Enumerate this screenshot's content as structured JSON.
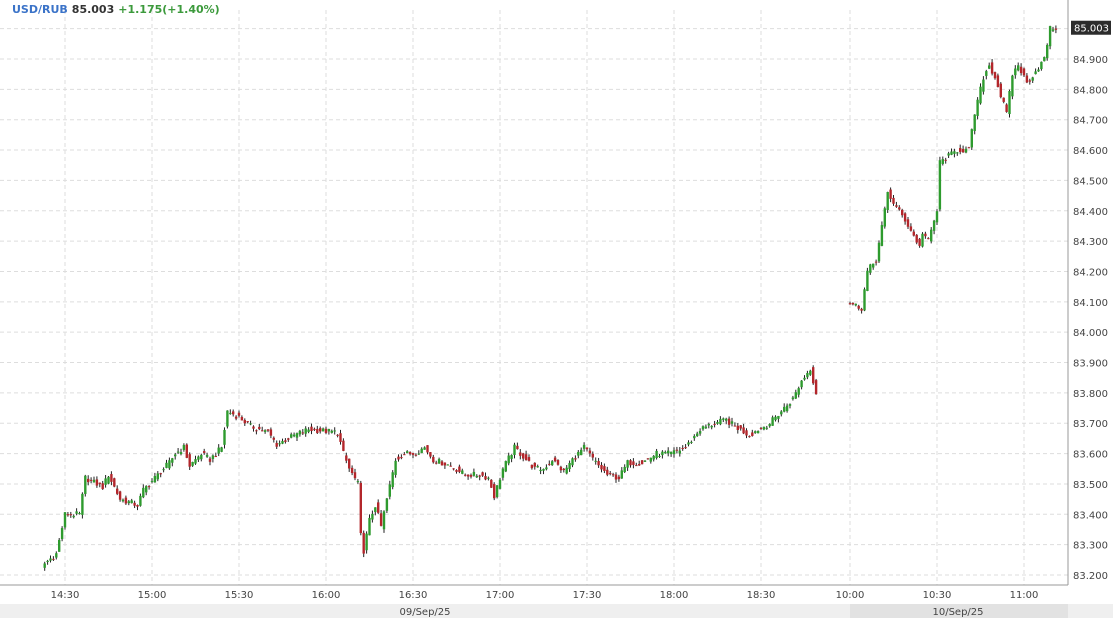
{
  "header": {
    "symbol": "USD/RUB",
    "price": "85.003",
    "change": "+1.175(+1.40%)"
  },
  "chart_data": {
    "type": "candlestick",
    "interval_minutes": 1,
    "y_ticks": [
      "83.200",
      "83.300",
      "83.400",
      "83.500",
      "83.600",
      "83.700",
      "83.800",
      "83.900",
      "84.000",
      "84.100",
      "84.200",
      "84.300",
      "84.400",
      "84.500",
      "84.600",
      "84.700",
      "84.800",
      "84.900"
    ],
    "ylim": [
      83.15,
      85.05
    ],
    "last_price_label": "85.003",
    "x_ticks": [
      "14:30",
      "15:00",
      "15:30",
      "16:00",
      "16:30",
      "17:00",
      "17:30",
      "18:00",
      "18:30",
      "10:00",
      "10:30",
      "11:00"
    ],
    "date_labels": [
      "09/Sep/25",
      "10/Sep/25"
    ],
    "grid": true,
    "colors": {
      "up": "#2e9b2e",
      "down": "#b3262b",
      "grid": "#dddddd",
      "axis_text": "#444444",
      "last_price_box": "#2c2c2c"
    },
    "anchors": [
      {
        "t": "14:23",
        "v": 83.23
      },
      {
        "t": "14:28",
        "v": 83.27
      },
      {
        "t": "14:31",
        "v": 83.4
      },
      {
        "t": "14:36",
        "v": 83.4
      },
      {
        "t": "14:38",
        "v": 83.52
      },
      {
        "t": "14:44",
        "v": 83.49
      },
      {
        "t": "14:46",
        "v": 83.53
      },
      {
        "t": "14:50",
        "v": 83.45
      },
      {
        "t": "14:56",
        "v": 83.43
      },
      {
        "t": "14:58",
        "v": 83.48
      },
      {
        "t": "15:02",
        "v": 83.52
      },
      {
        "t": "15:07",
        "v": 83.57
      },
      {
        "t": "15:09",
        "v": 83.6
      },
      {
        "t": "15:12",
        "v": 83.62
      },
      {
        "t": "15:14",
        "v": 83.56
      },
      {
        "t": "15:18",
        "v": 83.6
      },
      {
        "t": "15:21",
        "v": 83.58
      },
      {
        "t": "15:25",
        "v": 83.62
      },
      {
        "t": "15:27",
        "v": 83.74
      },
      {
        "t": "15:31",
        "v": 83.72
      },
      {
        "t": "15:35",
        "v": 83.69
      },
      {
        "t": "15:41",
        "v": 83.67
      },
      {
        "t": "15:44",
        "v": 83.63
      },
      {
        "t": "15:50",
        "v": 83.66
      },
      {
        "t": "15:55",
        "v": 83.68
      },
      {
        "t": "16:05",
        "v": 83.67
      },
      {
        "t": "16:07",
        "v": 83.6
      },
      {
        "t": "16:09",
        "v": 83.55
      },
      {
        "t": "16:12",
        "v": 83.5
      },
      {
        "t": "16:13",
        "v": 83.33
      },
      {
        "t": "16:14",
        "v": 83.28
      },
      {
        "t": "16:16",
        "v": 83.38
      },
      {
        "t": "16:18",
        "v": 83.43
      },
      {
        "t": "16:20",
        "v": 83.36
      },
      {
        "t": "16:22",
        "v": 83.45
      },
      {
        "t": "16:25",
        "v": 83.58
      },
      {
        "t": "16:28",
        "v": 83.6
      },
      {
        "t": "16:31",
        "v": 83.6
      },
      {
        "t": "16:35",
        "v": 83.62
      },
      {
        "t": "16:38",
        "v": 83.58
      },
      {
        "t": "16:44",
        "v": 83.56
      },
      {
        "t": "16:49",
        "v": 83.53
      },
      {
        "t": "16:54",
        "v": 83.53
      },
      {
        "t": "16:57",
        "v": 83.52
      },
      {
        "t": "16:59",
        "v": 83.46
      },
      {
        "t": "17:02",
        "v": 83.55
      },
      {
        "t": "17:06",
        "v": 83.62
      },
      {
        "t": "17:09",
        "v": 83.59
      },
      {
        "t": "17:13",
        "v": 83.55
      },
      {
        "t": "17:16",
        "v": 83.55
      },
      {
        "t": "17:19",
        "v": 83.58
      },
      {
        "t": "17:23",
        "v": 83.54
      },
      {
        "t": "17:26",
        "v": 83.58
      },
      {
        "t": "17:30",
        "v": 83.62
      },
      {
        "t": "17:34",
        "v": 83.57
      },
      {
        "t": "17:38",
        "v": 83.53
      },
      {
        "t": "17:42",
        "v": 83.52
      },
      {
        "t": "17:45",
        "v": 83.57
      },
      {
        "t": "17:50",
        "v": 83.57
      },
      {
        "t": "17:55",
        "v": 83.6
      },
      {
        "t": "18:00",
        "v": 83.6
      },
      {
        "t": "18:05",
        "v": 83.62
      },
      {
        "t": "18:10",
        "v": 83.68
      },
      {
        "t": "18:15",
        "v": 83.7
      },
      {
        "t": "18:19",
        "v": 83.71
      },
      {
        "t": "18:22",
        "v": 83.69
      },
      {
        "t": "18:27",
        "v": 83.66
      },
      {
        "t": "18:30",
        "v": 83.68
      },
      {
        "t": "18:34",
        "v": 83.7
      },
      {
        "t": "18:38",
        "v": 83.74
      },
      {
        "t": "18:42",
        "v": 83.78
      },
      {
        "t": "18:45",
        "v": 83.84
      },
      {
        "t": "18:48",
        "v": 83.88
      },
      {
        "t": "18:49",
        "v": 83.84
      },
      {
        "t": "18:50",
        "v": 83.8
      },
      {
        "t": "10:00",
        "v": 84.1
      },
      {
        "t": "10:05",
        "v": 84.08
      },
      {
        "t": "10:07",
        "v": 84.2
      },
      {
        "t": "10:10",
        "v": 84.24
      },
      {
        "t": "10:13",
        "v": 84.4
      },
      {
        "t": "10:14",
        "v": 84.46
      },
      {
        "t": "10:17",
        "v": 84.41
      },
      {
        "t": "10:20",
        "v": 84.37
      },
      {
        "t": "10:24",
        "v": 84.3
      },
      {
        "t": "10:25",
        "v": 84.28
      },
      {
        "t": "10:26",
        "v": 84.33
      },
      {
        "t": "10:28",
        "v": 84.3
      },
      {
        "t": "10:31",
        "v": 84.4
      },
      {
        "t": "10:32",
        "v": 84.56
      },
      {
        "t": "10:35",
        "v": 84.58
      },
      {
        "t": "10:38",
        "v": 84.6
      },
      {
        "t": "10:42",
        "v": 84.6
      },
      {
        "t": "10:44",
        "v": 84.72
      },
      {
        "t": "10:47",
        "v": 84.84
      },
      {
        "t": "10:49",
        "v": 84.88
      },
      {
        "t": "10:51",
        "v": 84.84
      },
      {
        "t": "10:53",
        "v": 84.78
      },
      {
        "t": "10:55",
        "v": 84.72
      },
      {
        "t": "10:57",
        "v": 84.85
      },
      {
        "t": "10:59",
        "v": 84.88
      },
      {
        "t": "11:02",
        "v": 84.82
      },
      {
        "t": "11:05",
        "v": 84.86
      },
      {
        "t": "11:08",
        "v": 84.9
      },
      {
        "t": "11:10",
        "v": 85.0
      },
      {
        "t": "11:12",
        "v": 85.003
      }
    ]
  }
}
